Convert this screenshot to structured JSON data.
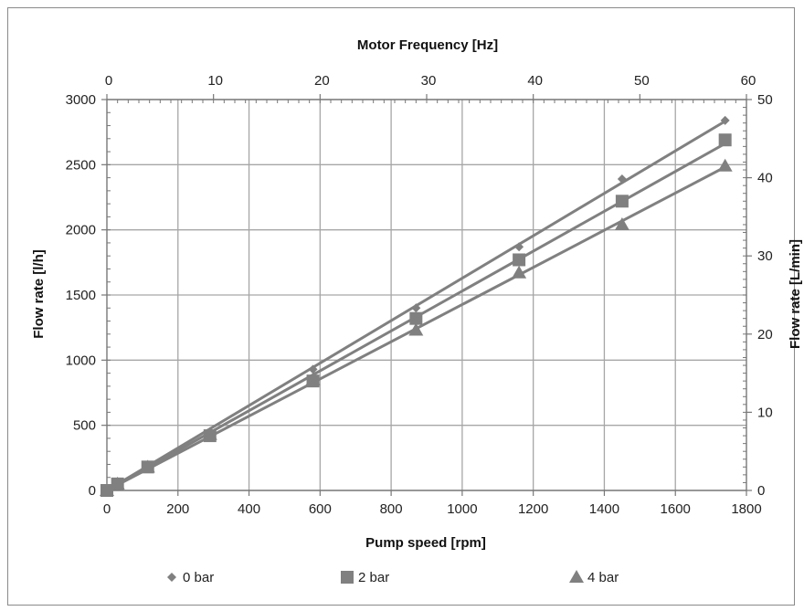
{
  "chart_data": {
    "type": "scatter",
    "xlabel": "Pump speed [rpm]",
    "ylabel": "Flow rate [l/h]",
    "x2label": "Motor Frequency [Hz]",
    "y2label": "Flow rate [L/min]",
    "xlim": [
      0,
      1800
    ],
    "ylim": [
      0,
      3000
    ],
    "x2lim": [
      0,
      60
    ],
    "y2lim": [
      0,
      50
    ],
    "xticks": [
      "0",
      "200",
      "400",
      "600",
      "800",
      "1000",
      "1200",
      "1400",
      "1600",
      "1800"
    ],
    "yticks": [
      "0",
      "500",
      "1000",
      "1500",
      "2000",
      "2500",
      "3000"
    ],
    "x2ticks": [
      "0",
      "10",
      "20",
      "30",
      "40",
      "50",
      "60"
    ],
    "y2ticks": [
      "0",
      "10",
      "20",
      "30",
      "40",
      "50"
    ],
    "grid": true,
    "legend_position": "bottom",
    "trendlines": true,
    "series": [
      {
        "name": "0 bar",
        "marker": "diamond",
        "color": "#808080",
        "points": [
          [
            0,
            0
          ],
          [
            30,
            50
          ],
          [
            115,
            180
          ],
          [
            290,
            450
          ],
          [
            580,
            930
          ],
          [
            870,
            1400
          ],
          [
            1160,
            1870
          ],
          [
            1450,
            2390
          ],
          [
            1740,
            2840
          ]
        ]
      },
      {
        "name": "2 bar",
        "marker": "square",
        "color": "#808080",
        "points": [
          [
            0,
            0
          ],
          [
            30,
            50
          ],
          [
            115,
            180
          ],
          [
            290,
            420
          ],
          [
            580,
            840
          ],
          [
            870,
            1320
          ],
          [
            1160,
            1770
          ],
          [
            1450,
            2220
          ],
          [
            1740,
            2690
          ]
        ]
      },
      {
        "name": "4 bar",
        "marker": "triangle",
        "color": "#808080",
        "points": [
          [
            0,
            0
          ],
          [
            30,
            50
          ],
          [
            115,
            180
          ],
          [
            290,
            430
          ],
          [
            580,
            850
          ],
          [
            870,
            1230
          ],
          [
            1160,
            1670
          ],
          [
            1450,
            2040
          ],
          [
            1740,
            2490
          ]
        ]
      }
    ]
  }
}
